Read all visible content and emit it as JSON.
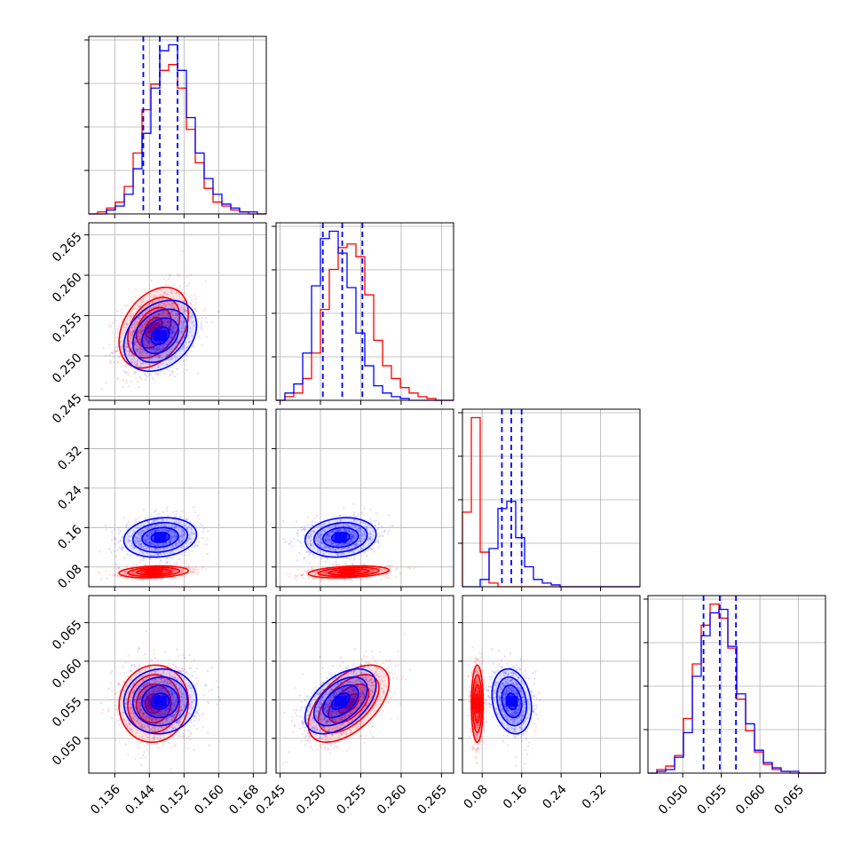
{
  "chart_data": {
    "type": "corner",
    "colors": {
      "series_a": "#ff0000",
      "series_b": "#0000ff",
      "grid": "#b0b0b0"
    },
    "grid": true,
    "parameters": [
      {
        "index": 0,
        "range": [
          0.13,
          0.171
        ],
        "ticks": [
          0.136,
          0.144,
          0.152,
          0.16,
          0.168
        ],
        "tick_labels": [
          "0.136",
          "0.144",
          "0.152",
          "0.160",
          "0.168"
        ]
      },
      {
        "index": 1,
        "range": [
          0.2445,
          0.2665
        ],
        "ticks": [
          0.245,
          0.25,
          0.255,
          0.26,
          0.265
        ],
        "tick_labels": [
          "0.245",
          "0.250",
          "0.255",
          "0.260",
          "0.265"
        ]
      },
      {
        "index": 2,
        "range": [
          0.04,
          0.4
        ],
        "ticks": [
          0.08,
          0.16,
          0.24,
          0.32
        ],
        "tick_labels": [
          "0.08",
          "0.16",
          "0.24",
          "0.32"
        ]
      },
      {
        "index": 3,
        "range": [
          0.0455,
          0.0685
        ],
        "ticks": [
          0.05,
          0.055,
          0.06,
          0.065
        ],
        "tick_labels": [
          "0.050",
          "0.055",
          "0.060",
          "0.065"
        ]
      }
    ],
    "series": [
      {
        "key": "series_a",
        "color": "#ff0000",
        "mean": [
          0.145,
          0.2535,
          0.07,
          0.0545
        ],
        "sd": [
          0.004,
          0.0025,
          0.006,
          0.0025
        ],
        "corr": {
          "0-1": 0.35,
          "0-2": 0.2,
          "0-3": 0.05,
          "1-2": 0.3,
          "1-3": 0.55,
          "2-3": 0.0
        }
      },
      {
        "key": "series_b",
        "color": "#0000ff",
        "mean": [
          0.1465,
          0.2525,
          0.14,
          0.0548
        ],
        "sd": [
          0.0042,
          0.0022,
          0.02,
          0.0021
        ],
        "corr": {
          "0-1": 0.3,
          "0-2": 0.15,
          "0-3": 0.05,
          "1-2": 0.15,
          "1-3": 0.5,
          "2-3": -0.2
        }
      }
    ],
    "quantile_lines": [
      [
        0.1426,
        0.1464,
        0.1505
      ],
      [
        0.2503,
        0.2527,
        0.2552
      ],
      [
        0.12,
        0.139,
        0.16
      ],
      [
        0.0527,
        0.0548,
        0.0569
      ]
    ],
    "histograms": [
      {
        "bins": [
          0.13,
          0.171
        ],
        "series_a": [
          0,
          1,
          3,
          6,
          14,
          31,
          53,
          66,
          73,
          76,
          64,
          43,
          26,
          13,
          6,
          4,
          2,
          1,
          0,
          0
        ],
        "series_b": [
          0,
          0,
          2,
          4,
          10,
          23,
          41,
          64,
          83,
          86,
          73,
          49,
          31,
          18,
          10,
          5,
          3,
          1,
          1,
          0
        ]
      },
      {
        "bins": [
          0.2445,
          0.2665
        ],
        "series_a": [
          0,
          2,
          4,
          12,
          26,
          50,
          72,
          84,
          86,
          79,
          58,
          33,
          19,
          12,
          7,
          4,
          2,
          1,
          0,
          0
        ],
        "series_b": [
          0,
          4,
          9,
          26,
          63,
          89,
          93,
          81,
          62,
          37,
          19,
          8,
          4,
          2,
          1,
          0,
          0,
          0,
          0,
          0
        ]
      },
      {
        "bins": [
          0.04,
          0.4
        ],
        "series_a": [
          41,
          93,
          19,
          2,
          0,
          0,
          0,
          0,
          0,
          0,
          0,
          0,
          0,
          0,
          0,
          0,
          0,
          0,
          0,
          0
        ],
        "series_b": [
          0,
          0,
          4,
          21,
          43,
          47,
          27,
          11,
          4,
          2,
          1,
          0,
          0,
          0,
          0,
          0,
          0,
          0,
          0,
          0
        ]
      },
      {
        "bins": [
          0.0455,
          0.0685
        ],
        "series_a": [
          0,
          2,
          4,
          10,
          31,
          62,
          84,
          96,
          88,
          71,
          42,
          24,
          12,
          5,
          2,
          1,
          0,
          0,
          0,
          0
        ],
        "series_b": [
          0,
          1,
          2,
          9,
          23,
          55,
          78,
          91,
          93,
          72,
          45,
          28,
          13,
          6,
          3,
          1,
          1,
          0,
          0,
          0
        ]
      }
    ]
  }
}
